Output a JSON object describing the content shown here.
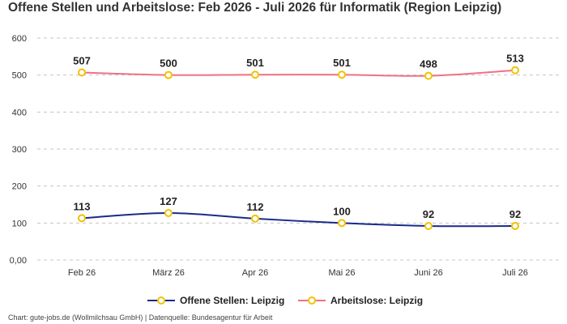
{
  "chart_data": {
    "type": "line",
    "title": "Offene Stellen und Arbeitslose: Feb 2026 - Juli 2026 für Informatik (Region Leipzig)",
    "categories": [
      "Feb 26",
      "März 26",
      "Apr 26",
      "Mai 26",
      "Juni 26",
      "Juli 26"
    ],
    "y_ticks": [
      "0,00",
      "100",
      "200",
      "300",
      "400",
      "500",
      "600"
    ],
    "y_tick_values": [
      0,
      100,
      200,
      300,
      400,
      500,
      600
    ],
    "ylim": [
      0,
      600
    ],
    "xlabel": "",
    "ylabel": "",
    "grid": true,
    "legend_position": "bottom",
    "series": [
      {
        "name": "Offene Stellen: Leipzig",
        "color": "#1a2a8a",
        "marker_color": "#f2c200",
        "values": [
          113,
          127,
          112,
          100,
          92,
          92
        ]
      },
      {
        "name": "Arbeitslose: Leipzig",
        "color": "#f07085",
        "marker_color": "#f2c200",
        "values": [
          507,
          500,
          501,
          501,
          498,
          513
        ]
      }
    ],
    "source": "Chart: gute-jobs.de (Wollmilchsau GmbH) | Datenquelle: Bundesagentur für Arbeit"
  }
}
